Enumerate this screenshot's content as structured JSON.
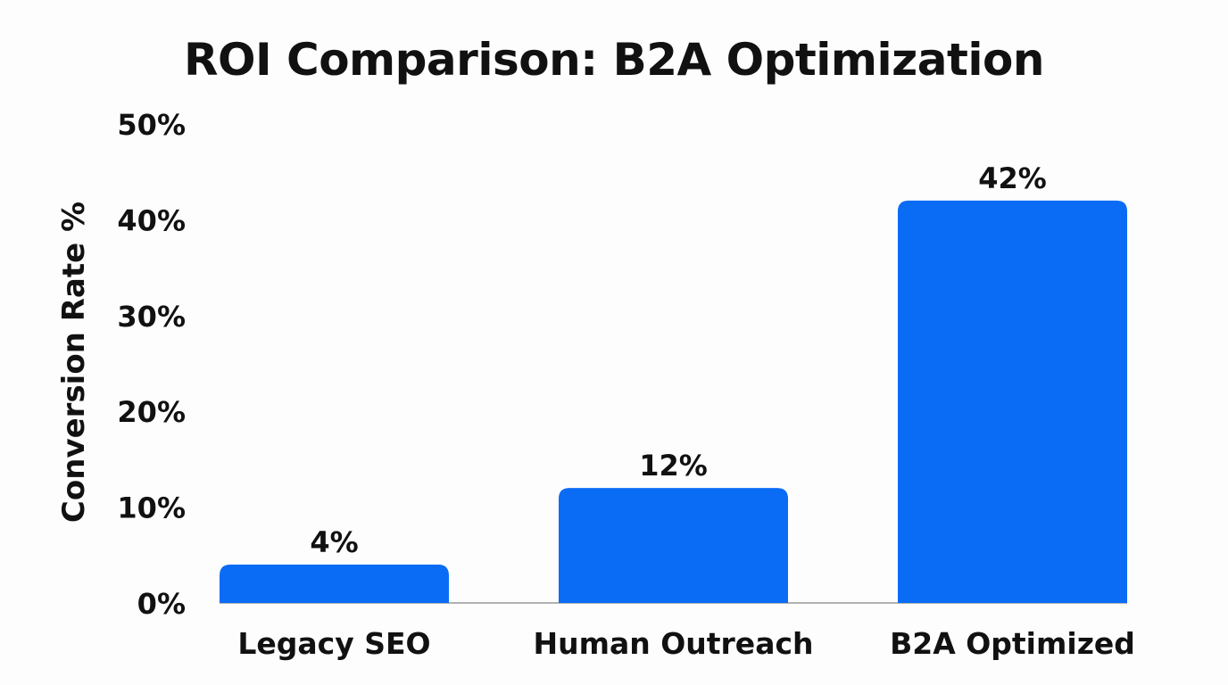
{
  "chart_data": {
    "type": "bar",
    "title": "ROI Comparison: B2A Optimization",
    "xlabel": "",
    "ylabel": "Conversion Rate %",
    "categories": [
      "Legacy SEO",
      "Human Outreach",
      "B2A Optimized"
    ],
    "values": [
      4,
      12,
      42
    ],
    "data_labels": [
      "4%",
      "12%",
      "42%"
    ],
    "ylim": [
      0,
      50
    ],
    "yticks": [
      0,
      10,
      20,
      30,
      40,
      50
    ],
    "ytick_labels": [
      "0%",
      "10%",
      "20%",
      "30%",
      "40%",
      "50%"
    ],
    "grid": false,
    "bar_color": "#0A6CF5"
  }
}
